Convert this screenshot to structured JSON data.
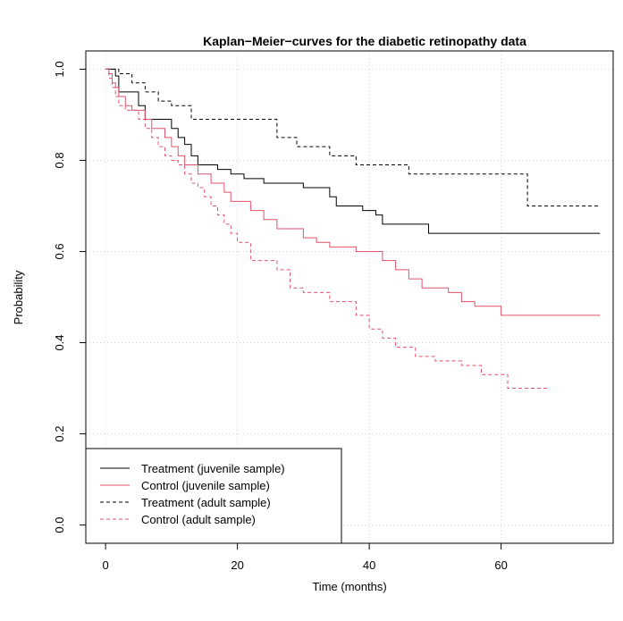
{
  "chart_data": {
    "type": "line",
    "title": "Kaplan−Meier−curves for the diabetic retinopathy data",
    "xlabel": "Time (months)",
    "ylabel": "Probability",
    "xlim": [
      -3,
      77
    ],
    "ylim": [
      -0.04,
      1.04
    ],
    "xticks": [
      0,
      20,
      40,
      60
    ],
    "xtick_labels": [
      "0",
      "20",
      "40",
      "60"
    ],
    "yticks": [
      0.0,
      0.2,
      0.4,
      0.6,
      0.8,
      1.0
    ],
    "ytick_labels": [
      "0.0",
      "0.2",
      "0.4",
      "0.6",
      "0.8",
      "1.0"
    ],
    "grid": true,
    "step": true,
    "legend_position": "bottom-left",
    "series": [
      {
        "name": "Treatment (juvenile sample)",
        "color": "#000000",
        "dash": "solid",
        "x": [
          0,
          1.5,
          2,
          5,
          6,
          10,
          11,
          12,
          13,
          14,
          17,
          19,
          21,
          24,
          30,
          34,
          35,
          39,
          41,
          42,
          49,
          75
        ],
        "y": [
          1.0,
          0.985,
          0.95,
          0.92,
          0.89,
          0.87,
          0.85,
          0.835,
          0.81,
          0.79,
          0.78,
          0.77,
          0.76,
          0.75,
          0.74,
          0.72,
          0.7,
          0.69,
          0.68,
          0.66,
          0.64,
          0.64
        ]
      },
      {
        "name": "Control (juvenile sample)",
        "color": "#df536b",
        "dash": "solid",
        "x": [
          0,
          0.5,
          1,
          1.5,
          2,
          3,
          4,
          6,
          7,
          9,
          10,
          11,
          12,
          14,
          16,
          18,
          19,
          22,
          24,
          26,
          30,
          32,
          34,
          38,
          42,
          44,
          46,
          48,
          52,
          54,
          56,
          60,
          75
        ],
        "y": [
          1.0,
          0.99,
          0.97,
          0.96,
          0.94,
          0.92,
          0.91,
          0.89,
          0.87,
          0.85,
          0.83,
          0.81,
          0.79,
          0.77,
          0.75,
          0.73,
          0.71,
          0.69,
          0.67,
          0.65,
          0.63,
          0.62,
          0.61,
          0.6,
          0.58,
          0.56,
          0.54,
          0.52,
          0.51,
          0.49,
          0.48,
          0.46,
          0.46
        ]
      },
      {
        "name": "Treatment (adult sample)",
        "color": "#000000",
        "dash": "dashed",
        "x": [
          0,
          2,
          4,
          6,
          8,
          10,
          13,
          26,
          29,
          34,
          38,
          46,
          64,
          75
        ],
        "y": [
          1.0,
          0.99,
          0.97,
          0.95,
          0.93,
          0.92,
          0.89,
          0.85,
          0.83,
          0.81,
          0.79,
          0.77,
          0.7,
          0.7
        ]
      },
      {
        "name": "Control (adult sample)",
        "color": "#df536b",
        "dash": "dashed",
        "x": [
          0,
          0.5,
          1,
          1.5,
          2,
          3,
          5,
          6,
          7,
          8,
          9,
          10,
          11,
          12,
          13,
          14,
          15,
          16,
          17,
          18,
          19,
          20,
          22,
          26,
          28,
          30,
          34,
          38,
          40,
          42,
          44,
          47,
          50,
          54,
          57,
          61,
          67
        ],
        "y": [
          1.0,
          0.98,
          0.96,
          0.94,
          0.92,
          0.91,
          0.89,
          0.87,
          0.85,
          0.83,
          0.81,
          0.8,
          0.79,
          0.77,
          0.75,
          0.74,
          0.72,
          0.7,
          0.68,
          0.66,
          0.64,
          0.62,
          0.58,
          0.56,
          0.52,
          0.51,
          0.49,
          0.46,
          0.43,
          0.41,
          0.39,
          0.37,
          0.36,
          0.35,
          0.33,
          0.3,
          0.3
        ]
      }
    ]
  }
}
